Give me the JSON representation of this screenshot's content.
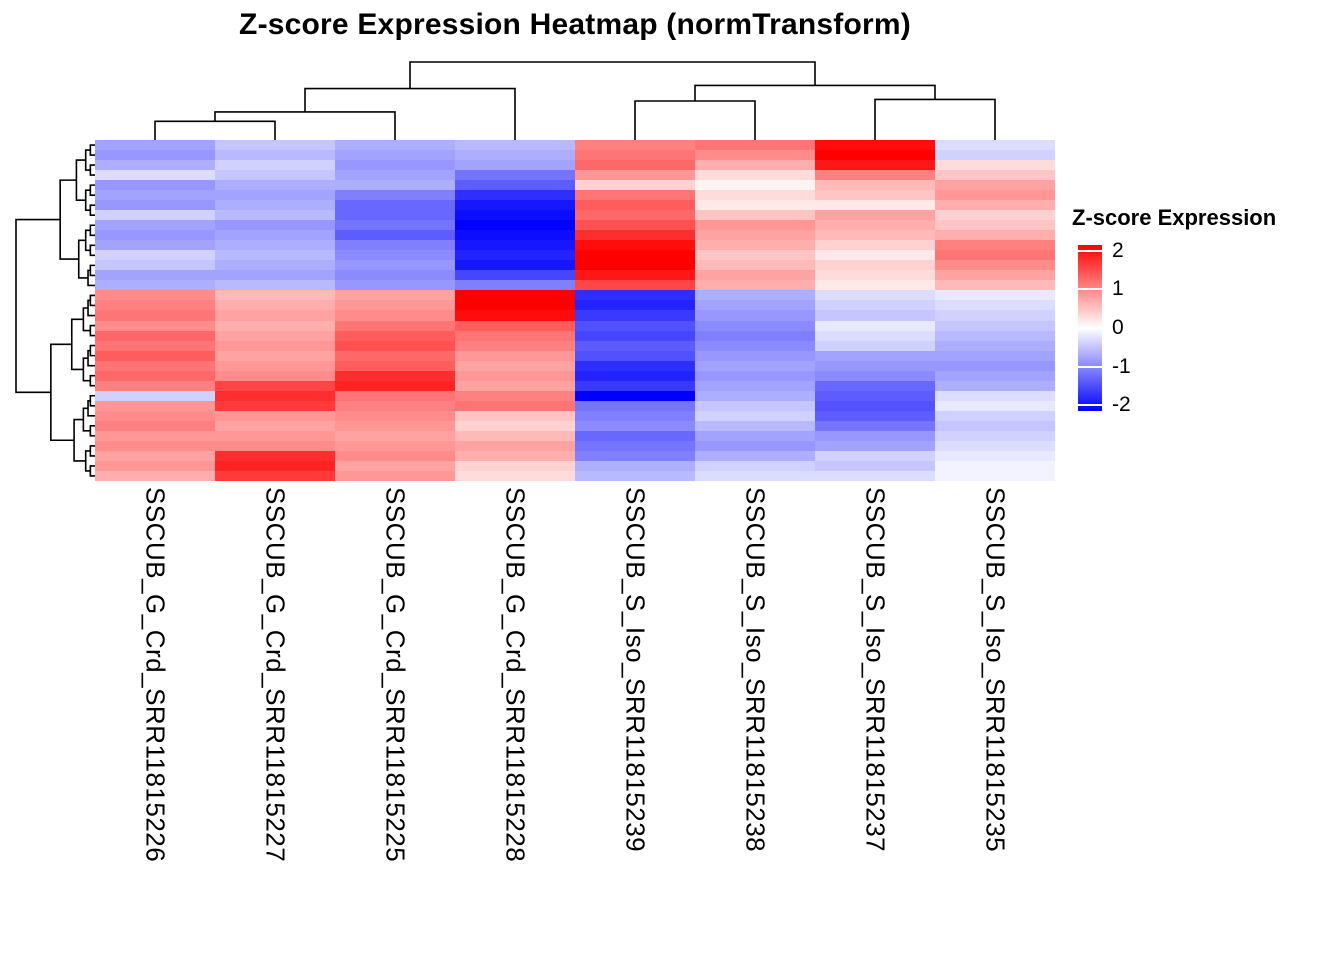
{
  "title": "Z-score Expression Heatmap (normTransform)",
  "legend": {
    "title": "Z-score Expression",
    "ticks": [
      2,
      1,
      0,
      -1,
      -2
    ],
    "vmin": -2.15,
    "vmax": 2.15,
    "color_high": "#FF0000",
    "color_mid": "#FFFFFF",
    "color_low": "#0000FF"
  },
  "chart_data": {
    "type": "heatmap",
    "title": "Z-score Expression Heatmap (normTransform)",
    "legend_title": "Z-score Expression",
    "legend_position": "right",
    "row_labels_shown": false,
    "n_rows": 34,
    "columns": [
      "SSCUB_G_Crd_SRR11815226",
      "SSCUB_G_Crd_SRR11815227",
      "SSCUB_G_Crd_SRR11815225",
      "SSCUB_G_Crd_SRR11815228",
      "SSCUB_S_Iso_SRR11815239",
      "SSCUB_S_Iso_SRR11815238",
      "SSCUB_S_Iso_SRR11815237",
      "SSCUB_S_Iso_SRR11815235"
    ],
    "colormap": {
      "low": "#0000FF",
      "mid": "#FFFFFF",
      "high": "#FF0000",
      "saturation": 2.2
    },
    "row_clusters": [
      [
        0,
        14
      ],
      [
        15,
        33
      ]
    ],
    "column_dendrogram": {
      "h": 1.0,
      "children": [
        {
          "h": 0.66,
          "children": [
            {
              "h": 0.36,
              "children": [
                {
                  "h": 0.24,
                  "children": [
                    {
                      "leaf": 0
                    },
                    {
                      "leaf": 1
                    }
                  ]
                },
                {
                  "leaf": 2
                }
              ]
            },
            {
              "leaf": 3
            }
          ]
        },
        {
          "h": 0.7,
          "children": [
            {
              "h": 0.5,
              "children": [
                {
                  "leaf": 4
                },
                {
                  "leaf": 5
                }
              ]
            },
            {
              "h": 0.52,
              "children": [
                {
                  "leaf": 6
                },
                {
                  "leaf": 7
                }
              ]
            }
          ]
        }
      ]
    },
    "values": [
      [
        -0.8,
        -0.5,
        -0.7,
        -0.6,
        1.1,
        1.2,
        2.1,
        -0.3
      ],
      [
        -0.9,
        -0.6,
        -0.8,
        -0.7,
        1.2,
        1.0,
        2.2,
        -0.4
      ],
      [
        -0.7,
        -0.4,
        -0.9,
        -0.8,
        1.3,
        0.7,
        2.0,
        0.3
      ],
      [
        -0.3,
        -0.5,
        -0.8,
        -1.2,
        0.9,
        0.3,
        1.1,
        0.5
      ],
      [
        -0.9,
        -0.7,
        -0.7,
        -1.4,
        0.4,
        0.1,
        0.6,
        0.8
      ],
      [
        -0.8,
        -0.8,
        -1.1,
        -1.8,
        1.2,
        0.3,
        0.5,
        0.9
      ],
      [
        -0.9,
        -0.7,
        -1.3,
        -2.0,
        1.4,
        0.2,
        0.2,
        0.7
      ],
      [
        -0.4,
        -0.6,
        -1.3,
        -2.1,
        1.3,
        0.5,
        0.8,
        0.4
      ],
      [
        -0.8,
        -0.9,
        -1.2,
        -2.2,
        1.5,
        0.9,
        0.7,
        0.5
      ],
      [
        -0.9,
        -0.8,
        -1.4,
        -2.1,
        1.8,
        0.8,
        0.6,
        0.7
      ],
      [
        -0.8,
        -0.7,
        -1.1,
        -2.0,
        2.1,
        0.7,
        0.4,
        1.1
      ],
      [
        -0.4,
        -0.6,
        -1.0,
        -1.9,
        2.2,
        0.5,
        0.2,
        1.2
      ],
      [
        -0.5,
        -0.7,
        -0.9,
        -2.0,
        2.3,
        0.6,
        0.4,
        1.0
      ],
      [
        -0.8,
        -0.8,
        -1.0,
        -1.6,
        2.0,
        0.8,
        0.3,
        0.8
      ],
      [
        -0.7,
        -0.6,
        -0.9,
        -1.1,
        1.6,
        0.7,
        0.2,
        0.6
      ],
      [
        1.0,
        0.6,
        0.8,
        2.3,
        -1.8,
        -0.7,
        -0.3,
        -0.2
      ],
      [
        1.1,
        0.7,
        0.9,
        2.2,
        -1.9,
        -0.8,
        -0.4,
        -0.3
      ],
      [
        1.2,
        0.8,
        1.0,
        2.1,
        -1.7,
        -0.9,
        -0.5,
        -0.4
      ],
      [
        1.0,
        0.7,
        1.2,
        1.4,
        -1.5,
        -1.0,
        -0.2,
        -0.5
      ],
      [
        1.3,
        0.8,
        1.4,
        1.2,
        -1.6,
        -1.1,
        -0.3,
        -0.6
      ],
      [
        1.2,
        0.9,
        1.5,
        1.1,
        -1.4,
        -1.0,
        -0.4,
        -0.7
      ],
      [
        1.4,
        0.8,
        1.3,
        0.9,
        -1.5,
        -0.9,
        -0.8,
        -0.8
      ],
      [
        1.2,
        0.9,
        1.4,
        0.8,
        -1.8,
        -0.8,
        -0.9,
        -0.9
      ],
      [
        1.3,
        1.0,
        1.8,
        0.9,
        -1.9,
        -0.9,
        -1.0,
        -0.8
      ],
      [
        1.1,
        1.6,
        1.9,
        0.8,
        -1.7,
        -0.8,
        -1.3,
        -0.7
      ],
      [
        -0.4,
        1.8,
        1.2,
        1.1,
        -2.2,
        -0.7,
        -1.4,
        -0.3
      ],
      [
        0.9,
        1.7,
        1.1,
        1.2,
        -1.2,
        -0.5,
        -1.5,
        -0.2
      ],
      [
        1.0,
        0.9,
        1.0,
        0.5,
        -1.1,
        -0.4,
        -1.4,
        -0.4
      ],
      [
        1.1,
        0.8,
        0.9,
        0.4,
        -1.0,
        -0.6,
        -1.2,
        -0.5
      ],
      [
        0.9,
        0.9,
        0.8,
        0.6,
        -1.3,
        -0.8,
        -0.9,
        -0.4
      ],
      [
        1.0,
        1.0,
        0.9,
        0.8,
        -1.2,
        -0.9,
        -0.8,
        -0.3
      ],
      [
        0.8,
        1.8,
        1.0,
        0.7,
        -1.1,
        -0.7,
        -0.4,
        -0.2
      ],
      [
        0.9,
        1.9,
        0.8,
        0.4,
        -0.7,
        -0.4,
        -0.5,
        -0.1
      ],
      [
        0.7,
        1.7,
        0.9,
        0.3,
        -0.6,
        -0.3,
        -0.3,
        -0.1
      ]
    ]
  }
}
